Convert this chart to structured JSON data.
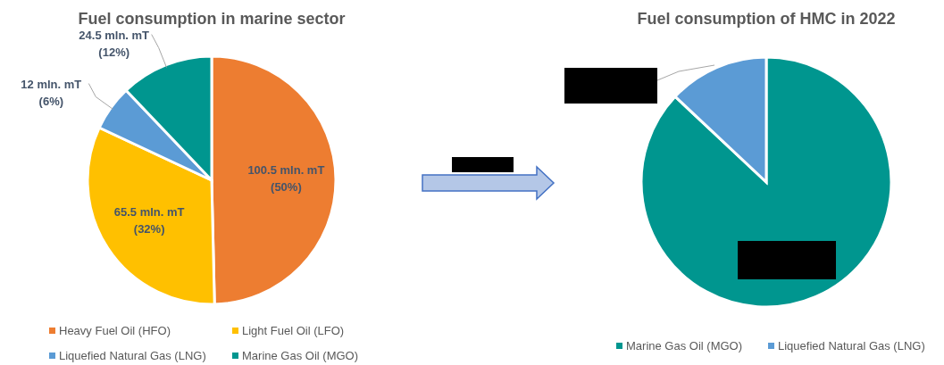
{
  "chart_data": [
    {
      "type": "pie",
      "title": "Fuel consumption in marine sector",
      "categories": [
        "Heavy Fuel Oil (HFO)",
        "Light Fuel Oil (LFO)",
        "Liquefied Natural Gas (LNG)",
        "Marine Gas Oil (MGO)"
      ],
      "values": [
        100.5,
        65.5,
        12,
        24.5
      ],
      "colors": [
        "#ed7d31",
        "#ffc000",
        "#5b9bd5",
        "#00968f"
      ],
      "value_labels": [
        "100.5 mln. mT\n(50%)",
        "65.5 mln. mT\n(32%)",
        "12 mln. mT\n(6%)",
        "24.5 mln. mT\n(12%)"
      ],
      "legend": "bottom"
    },
    {
      "type": "pie",
      "title": "Fuel consumption of HMC in 2022",
      "categories": [
        "Marine Gas Oil (MGO)",
        "Liquefied Natural Gas (LNG)"
      ],
      "values": [
        87,
        13
      ],
      "colors": [
        "#00968f",
        "#5b9bd5"
      ],
      "legend": "bottom"
    }
  ]
}
